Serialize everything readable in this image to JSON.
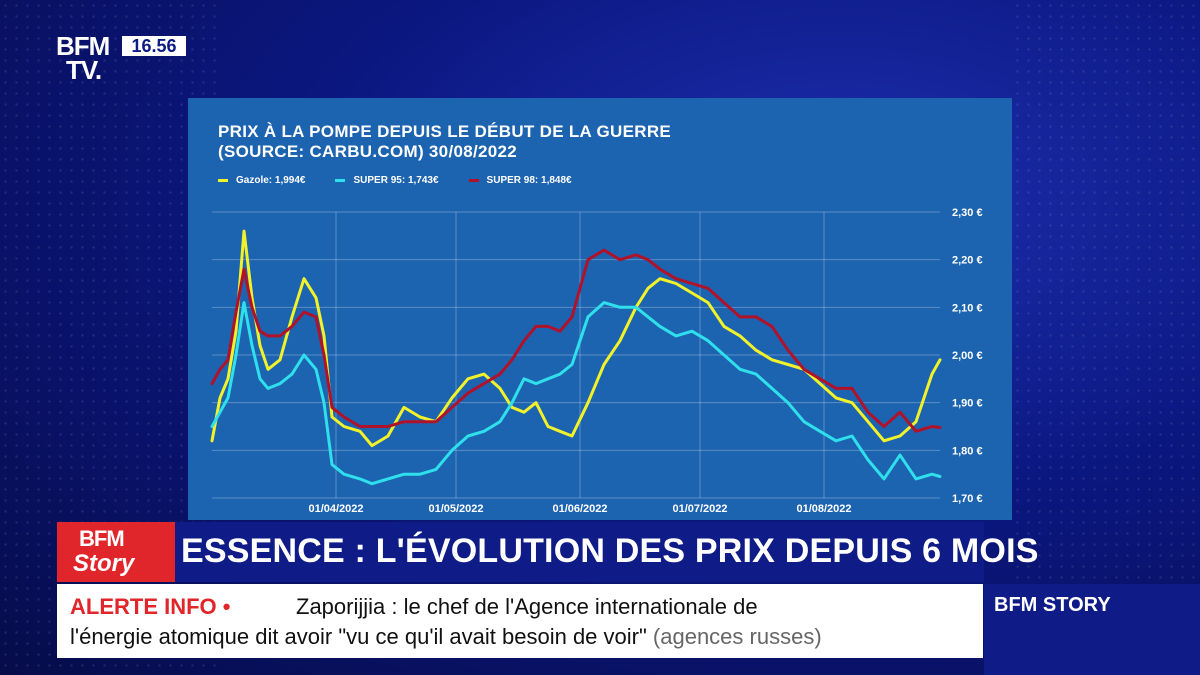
{
  "broadcast": {
    "logo_line1": "BFM",
    "logo_line2": "TV.",
    "clock": "16.56",
    "story_logo_line1": "BFM",
    "story_logo_line2": "Story",
    "headline": "ESSENCE : L'ÉVOLUTION DES PRIX DEPUIS 6 MOIS",
    "alert_label": "ALERTE INFO •",
    "alert_line1": "Zaporijjia : le chef de l'Agence internationale de",
    "alert_line2": "l'énergie atomique dit avoir \"vu ce qu'il avait besoin de voir\"",
    "alert_source": "(agences russes)",
    "channel_name": "BFM STORY"
  },
  "colors": {
    "panel": "#1c63b0",
    "gazole": "#f2f22a",
    "super95": "#2fe0ec",
    "super98": "#b0122a",
    "alert_red": "#e0262b"
  },
  "chart_data": {
    "type": "line",
    "title_line1": "PRIX À LA POMPE DEPUIS LE DÉBUT DE LA GUERRE",
    "title_line2": "(SOURCE: CARBU.COM) 30/08/2022",
    "ylim": [
      1.7,
      2.3
    ],
    "y_ticks": [
      "2,30 €",
      "2,20 €",
      "2,10 €",
      "2,00 €",
      "1,90 €",
      "1,80 €",
      "1,70 €"
    ],
    "x_ticks": [
      "01/04/2022",
      "01/05/2022",
      "01/06/2022",
      "01/07/2022",
      "01/08/2022"
    ],
    "x_range": [
      "2022-03-01",
      "2022-08-30"
    ],
    "grid": true,
    "legend_position": "top-left",
    "series": [
      {
        "name": "Gazole: 1,994€",
        "color": "#f2f22a",
        "x": [
          "2022-03-01",
          "2022-03-03",
          "2022-03-05",
          "2022-03-07",
          "2022-03-09",
          "2022-03-11",
          "2022-03-13",
          "2022-03-15",
          "2022-03-18",
          "2022-03-21",
          "2022-03-24",
          "2022-03-27",
          "2022-03-29",
          "2022-03-31",
          "2022-04-03",
          "2022-04-07",
          "2022-04-10",
          "2022-04-14",
          "2022-04-18",
          "2022-04-22",
          "2022-04-26",
          "2022-04-30",
          "2022-05-04",
          "2022-05-08",
          "2022-05-12",
          "2022-05-15",
          "2022-05-18",
          "2022-05-21",
          "2022-05-24",
          "2022-05-27",
          "2022-05-30",
          "2022-06-03",
          "2022-06-07",
          "2022-06-11",
          "2022-06-15",
          "2022-06-18",
          "2022-06-21",
          "2022-06-25",
          "2022-06-29",
          "2022-07-03",
          "2022-07-07",
          "2022-07-11",
          "2022-07-15",
          "2022-07-19",
          "2022-07-23",
          "2022-07-27",
          "2022-07-31",
          "2022-08-04",
          "2022-08-08",
          "2022-08-12",
          "2022-08-16",
          "2022-08-20",
          "2022-08-24",
          "2022-08-28",
          "2022-08-30"
        ],
        "values": [
          1.82,
          1.91,
          1.95,
          2.05,
          2.26,
          2.12,
          2.02,
          1.97,
          1.99,
          2.08,
          2.16,
          2.12,
          2.04,
          1.87,
          1.85,
          1.84,
          1.81,
          1.83,
          1.89,
          1.87,
          1.86,
          1.91,
          1.95,
          1.96,
          1.93,
          1.89,
          1.88,
          1.9,
          1.85,
          1.84,
          1.83,
          1.9,
          1.98,
          2.03,
          2.1,
          2.14,
          2.16,
          2.15,
          2.13,
          2.11,
          2.06,
          2.04,
          2.01,
          1.99,
          1.98,
          1.97,
          1.94,
          1.91,
          1.9,
          1.86,
          1.82,
          1.83,
          1.86,
          1.96,
          1.99
        ]
      },
      {
        "name": "SUPER 95: 1,743€",
        "color": "#2fe0ec",
        "x": [
          "2022-03-01",
          "2022-03-03",
          "2022-03-05",
          "2022-03-07",
          "2022-03-09",
          "2022-03-11",
          "2022-03-13",
          "2022-03-15",
          "2022-03-18",
          "2022-03-21",
          "2022-03-24",
          "2022-03-27",
          "2022-03-29",
          "2022-03-31",
          "2022-04-03",
          "2022-04-07",
          "2022-04-10",
          "2022-04-14",
          "2022-04-18",
          "2022-04-22",
          "2022-04-26",
          "2022-04-30",
          "2022-05-04",
          "2022-05-08",
          "2022-05-12",
          "2022-05-15",
          "2022-05-18",
          "2022-05-21",
          "2022-05-24",
          "2022-05-27",
          "2022-05-30",
          "2022-06-03",
          "2022-06-07",
          "2022-06-11",
          "2022-06-15",
          "2022-06-18",
          "2022-06-21",
          "2022-06-25",
          "2022-06-29",
          "2022-07-03",
          "2022-07-07",
          "2022-07-11",
          "2022-07-15",
          "2022-07-19",
          "2022-07-23",
          "2022-07-27",
          "2022-07-31",
          "2022-08-04",
          "2022-08-08",
          "2022-08-12",
          "2022-08-16",
          "2022-08-20",
          "2022-08-24",
          "2022-08-28",
          "2022-08-30"
        ],
        "values": [
          1.85,
          1.88,
          1.91,
          2.0,
          2.11,
          2.02,
          1.95,
          1.93,
          1.94,
          1.96,
          2.0,
          1.97,
          1.9,
          1.77,
          1.75,
          1.74,
          1.73,
          1.74,
          1.75,
          1.75,
          1.76,
          1.8,
          1.83,
          1.84,
          1.86,
          1.9,
          1.95,
          1.94,
          1.95,
          1.96,
          1.98,
          2.08,
          2.11,
          2.1,
          2.1,
          2.08,
          2.06,
          2.04,
          2.05,
          2.03,
          2.0,
          1.97,
          1.96,
          1.93,
          1.9,
          1.86,
          1.84,
          1.82,
          1.83,
          1.78,
          1.74,
          1.79,
          1.74,
          1.75,
          1.745
        ]
      },
      {
        "name": "SUPER 98: 1,848€",
        "color": "#b0122a",
        "x": [
          "2022-03-01",
          "2022-03-03",
          "2022-03-05",
          "2022-03-07",
          "2022-03-09",
          "2022-03-11",
          "2022-03-13",
          "2022-03-15",
          "2022-03-18",
          "2022-03-21",
          "2022-03-24",
          "2022-03-27",
          "2022-03-29",
          "2022-03-31",
          "2022-04-03",
          "2022-04-07",
          "2022-04-10",
          "2022-04-14",
          "2022-04-18",
          "2022-04-22",
          "2022-04-26",
          "2022-04-30",
          "2022-05-04",
          "2022-05-08",
          "2022-05-12",
          "2022-05-15",
          "2022-05-18",
          "2022-05-21",
          "2022-05-24",
          "2022-05-27",
          "2022-05-30",
          "2022-06-03",
          "2022-06-07",
          "2022-06-11",
          "2022-06-15",
          "2022-06-18",
          "2022-06-21",
          "2022-06-25",
          "2022-06-29",
          "2022-07-03",
          "2022-07-07",
          "2022-07-11",
          "2022-07-15",
          "2022-07-19",
          "2022-07-23",
          "2022-07-27",
          "2022-07-31",
          "2022-08-04",
          "2022-08-08",
          "2022-08-12",
          "2022-08-16",
          "2022-08-20",
          "2022-08-24",
          "2022-08-28",
          "2022-08-30"
        ],
        "values": [
          1.94,
          1.97,
          1.99,
          2.09,
          2.18,
          2.1,
          2.05,
          2.04,
          2.04,
          2.06,
          2.09,
          2.08,
          2.0,
          1.89,
          1.87,
          1.85,
          1.85,
          1.85,
          1.86,
          1.86,
          1.86,
          1.89,
          1.92,
          1.94,
          1.96,
          1.99,
          2.03,
          2.06,
          2.06,
          2.05,
          2.08,
          2.2,
          2.22,
          2.2,
          2.21,
          2.2,
          2.18,
          2.16,
          2.15,
          2.14,
          2.11,
          2.08,
          2.08,
          2.06,
          2.01,
          1.97,
          1.95,
          1.93,
          1.93,
          1.88,
          1.85,
          1.88,
          1.84,
          1.85,
          1.848
        ]
      }
    ]
  }
}
